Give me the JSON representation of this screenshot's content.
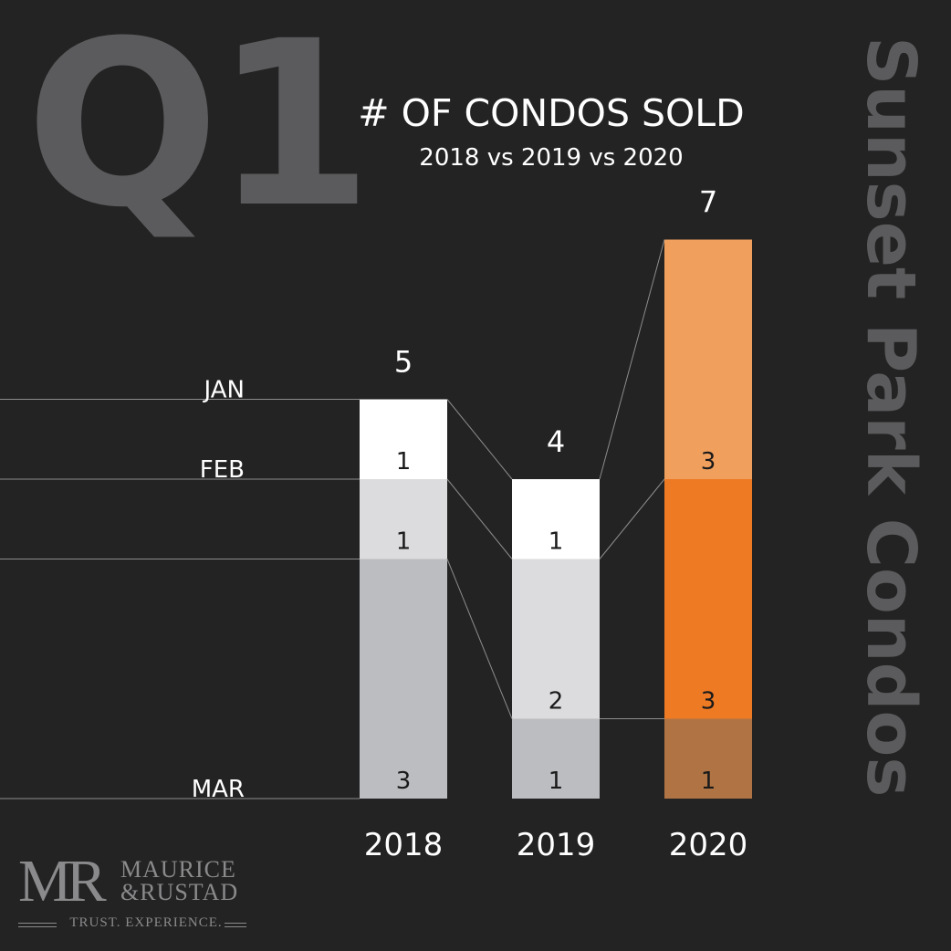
{
  "header": {
    "quarter": "Q1",
    "title": "# OF CONDOS SOLD",
    "subtitle": "2018 vs 2019 vs 2020",
    "side_title": "Sunset Park Condos"
  },
  "logo": {
    "mark": "MR",
    "name_line1": "MAURICE",
    "name_line2": "&RUSTAD",
    "tagline": "TRUST. EXPERIENCE."
  },
  "colors": {
    "background": "#232323",
    "watermark": "#5b5b5d",
    "connector": "#8c8c8c",
    "jan_gray": "#ffffff",
    "feb_gray": "#dcdcde",
    "mar_gray": "#bcbdc0",
    "jan_orange": "#f19f5c",
    "feb_orange": "#ee7a24",
    "mar_orange": "#b07444"
  },
  "chart_data": {
    "type": "bar",
    "stacked": true,
    "title": "# OF CONDOS SOLD",
    "subtitle": "2018 vs 2019 vs 2020",
    "categories": [
      "2018",
      "2019",
      "2020"
    ],
    "series": [
      {
        "name": "MAR",
        "values": [
          3,
          1,
          1
        ],
        "colors": [
          "#bcbdc0",
          "#bcbdc0",
          "#b07444"
        ]
      },
      {
        "name": "FEB",
        "values": [
          1,
          2,
          3
        ],
        "colors": [
          "#dcdcde",
          "#dcdcde",
          "#ee7a24"
        ]
      },
      {
        "name": "JAN",
        "values": [
          1,
          1,
          3
        ],
        "colors": [
          "#ffffff",
          "#ffffff",
          "#f19f5c"
        ]
      }
    ],
    "totals": [
      5,
      4,
      7
    ],
    "row_labels": [
      "MAR",
      "FEB",
      "JAN"
    ],
    "ylim": [
      0,
      7
    ]
  }
}
